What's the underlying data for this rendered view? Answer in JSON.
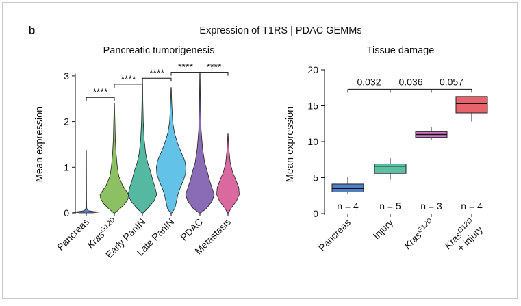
{
  "figure": {
    "panel_label": "b",
    "title": "Expression of T1RS | PDAC GEMMs"
  },
  "chart_data": [
    {
      "type": "violin",
      "title": "Pancreatic tumorigenesis",
      "ylabel": "Mean expression",
      "xlabel": "",
      "ylim": [
        0,
        3.3
      ],
      "yticks": [
        0,
        1,
        2,
        3
      ],
      "categories": [
        {
          "base": "Pancreas",
          "sup": "",
          "color": "#5b84c4",
          "max": 1.37,
          "profile": [
            [
              0,
              0.45
            ],
            [
              0.01,
              0.6
            ],
            [
              0.02,
              0.9
            ],
            [
              0.03,
              0.5
            ],
            [
              0.05,
              0.12
            ],
            [
              0.1,
              0.03
            ],
            [
              0.3,
              0.02
            ],
            [
              1.37,
              0.01
            ]
          ]
        },
        {
          "base": "Kras",
          "sup": "G12D",
          "color": "#8cc063",
          "max": 2.4,
          "profile": [
            [
              0,
              0.05
            ],
            [
              0.1,
              0.4
            ],
            [
              0.2,
              0.7
            ],
            [
              0.3,
              0.9
            ],
            [
              0.4,
              0.95
            ],
            [
              0.5,
              0.75
            ],
            [
              0.6,
              0.55
            ],
            [
              0.8,
              0.3
            ],
            [
              1.0,
              0.2
            ],
            [
              1.3,
              0.12
            ],
            [
              1.6,
              0.07
            ],
            [
              2.0,
              0.04
            ],
            [
              2.4,
              0.01
            ]
          ]
        },
        {
          "base": "Early PanIN",
          "sup": "",
          "color": "#54b9a0",
          "max": 2.95,
          "profile": [
            [
              0,
              0.05
            ],
            [
              0.1,
              0.35
            ],
            [
              0.25,
              0.75
            ],
            [
              0.4,
              0.95
            ],
            [
              0.55,
              0.85
            ],
            [
              0.7,
              0.7
            ],
            [
              0.9,
              0.55
            ],
            [
              1.1,
              0.35
            ],
            [
              1.3,
              0.22
            ],
            [
              1.6,
              0.12
            ],
            [
              2.0,
              0.06
            ],
            [
              2.4,
              0.03
            ],
            [
              2.95,
              0.01
            ]
          ]
        },
        {
          "base": "Late PanIN",
          "sup": "",
          "color": "#63c2e8",
          "max": 2.75,
          "profile": [
            [
              0,
              0.05
            ],
            [
              0.1,
              0.25
            ],
            [
              0.25,
              0.35
            ],
            [
              0.4,
              0.45
            ],
            [
              0.55,
              0.6
            ],
            [
              0.7,
              0.8
            ],
            [
              0.85,
              0.95
            ],
            [
              1.0,
              0.98
            ],
            [
              1.15,
              0.9
            ],
            [
              1.3,
              0.7
            ],
            [
              1.5,
              0.45
            ],
            [
              1.75,
              0.22
            ],
            [
              2.0,
              0.1
            ],
            [
              2.4,
              0.04
            ],
            [
              2.75,
              0.01
            ]
          ]
        },
        {
          "base": "PDAC",
          "sup": "",
          "color": "#8a6bb5",
          "max": 3.05,
          "profile": [
            [
              0,
              0.06
            ],
            [
              0.1,
              0.45
            ],
            [
              0.25,
              0.8
            ],
            [
              0.4,
              0.95
            ],
            [
              0.55,
              0.8
            ],
            [
              0.7,
              0.65
            ],
            [
              0.9,
              0.5
            ],
            [
              1.1,
              0.32
            ],
            [
              1.4,
              0.18
            ],
            [
              1.8,
              0.08
            ],
            [
              2.3,
              0.04
            ],
            [
              3.05,
              0.01
            ]
          ]
        },
        {
          "base": "Metastasis",
          "sup": "",
          "color": "#d9699f",
          "max": 1.73,
          "profile": [
            [
              0,
              0.03
            ],
            [
              0.1,
              0.2
            ],
            [
              0.25,
              0.55
            ],
            [
              0.4,
              0.75
            ],
            [
              0.55,
              0.72
            ],
            [
              0.7,
              0.55
            ],
            [
              0.9,
              0.3
            ],
            [
              1.1,
              0.15
            ],
            [
              1.4,
              0.06
            ],
            [
              1.73,
              0.01
            ]
          ]
        }
      ],
      "comparisons": [
        {
          "from": 0,
          "to": 1,
          "label": "****",
          "y": 2.53
        },
        {
          "from": 1,
          "to": 2,
          "label": "****",
          "y": 2.82
        },
        {
          "from": 2,
          "to": 3,
          "label": "****",
          "y": 2.95
        },
        {
          "from": 3,
          "to": 4,
          "label": "****",
          "y": 3.08
        },
        {
          "from": 4,
          "to": 5,
          "label": "****",
          "y": 3.08
        }
      ]
    },
    {
      "type": "box",
      "title": "Tissue damage",
      "ylabel": "Mean expression",
      "xlabel": "",
      "ylim": [
        0,
        21
      ],
      "yticks": [
        0,
        5,
        10,
        15,
        20
      ],
      "groups": [
        {
          "label_line1_base": "Pancreas",
          "label_line1_sup": "",
          "label_line2": "",
          "n_label": "n = 4",
          "color": "#4f7fc4",
          "whisker_low": 2.7,
          "q1": 3.0,
          "median": 3.5,
          "q3": 4.1,
          "whisker_high": 5.1
        },
        {
          "label_line1_base": "Injury",
          "label_line1_sup": "",
          "label_line2": "",
          "n_label": "n = 5",
          "color": "#5bbfa4",
          "whisker_low": 4.7,
          "q1": 5.6,
          "median": 6.6,
          "q3": 6.9,
          "whisker_high": 7.7
        },
        {
          "label_line1_base": "Kras",
          "label_line1_sup": "G12D",
          "label_line2": "",
          "n_label": "n = 3",
          "color": "#cc79c3",
          "whisker_low": 10.3,
          "q1": 10.6,
          "median": 11.0,
          "q3": 11.4,
          "whisker_high": 12.0
        },
        {
          "label_line1_base": "Kras",
          "label_line1_sup": "G12D",
          "label_line2": "+ injury",
          "n_label": "n = 4",
          "color": "#e8636c",
          "whisker_low": 12.8,
          "q1": 14.0,
          "median": 15.3,
          "q3": 16.3,
          "whisker_high": 16.3
        }
      ],
      "comparisons": [
        {
          "from": 0,
          "to": 1,
          "label": "0.032",
          "y": 17.3
        },
        {
          "from": 1,
          "to": 2,
          "label": "0.036",
          "y": 17.3
        },
        {
          "from": 2,
          "to": 3,
          "label": "0.057",
          "y": 17.3
        }
      ]
    }
  ]
}
